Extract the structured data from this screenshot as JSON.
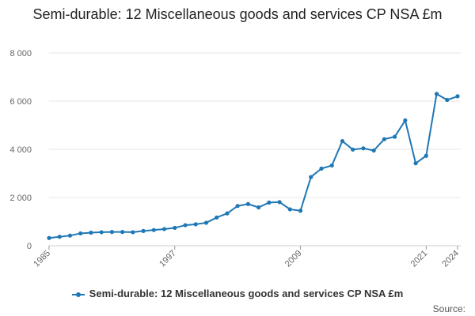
{
  "chart_data": {
    "type": "line",
    "title": "Semi-durable: 12 Miscellaneous goods and services CP NSA £m",
    "xlabel": "",
    "ylabel": "",
    "x": [
      1985,
      1986,
      1987,
      1988,
      1989,
      1990,
      1991,
      1992,
      1993,
      1994,
      1995,
      1996,
      1997,
      1998,
      1999,
      2000,
      2001,
      2002,
      2003,
      2004,
      2005,
      2006,
      2007,
      2008,
      2009,
      2010,
      2011,
      2012,
      2013,
      2014,
      2015,
      2016,
      2017,
      2018,
      2019,
      2020,
      2021,
      2022,
      2023,
      2024
    ],
    "x_ticks": [
      "1985",
      "1997",
      "2009",
      "2021",
      "2024"
    ],
    "y_ticks": [
      "0",
      "2 000",
      "4 000",
      "6 000",
      "8 000"
    ],
    "ylim": [
      0,
      8000
    ],
    "grid": true,
    "legend_position": "bottom",
    "color": "#1f77b4",
    "series": [
      {
        "name": "Semi-durable: 12 Miscellaneous goods and services CP NSA £m",
        "values": [
          320,
          370,
          420,
          510,
          540,
          560,
          570,
          570,
          560,
          610,
          650,
          690,
          740,
          850,
          890,
          950,
          1170,
          1340,
          1650,
          1730,
          1590,
          1790,
          1810,
          1510,
          1450,
          2850,
          3200,
          3330,
          4340,
          3990,
          4040,
          3950,
          4420,
          4520,
          5200,
          3420,
          3730,
          6300,
          6050,
          6200
        ]
      }
    ]
  },
  "legend": {
    "label": "Semi-durable: 12 Miscellaneous goods and services CP NSA £m"
  },
  "footer": {
    "source_label": "Source:"
  }
}
